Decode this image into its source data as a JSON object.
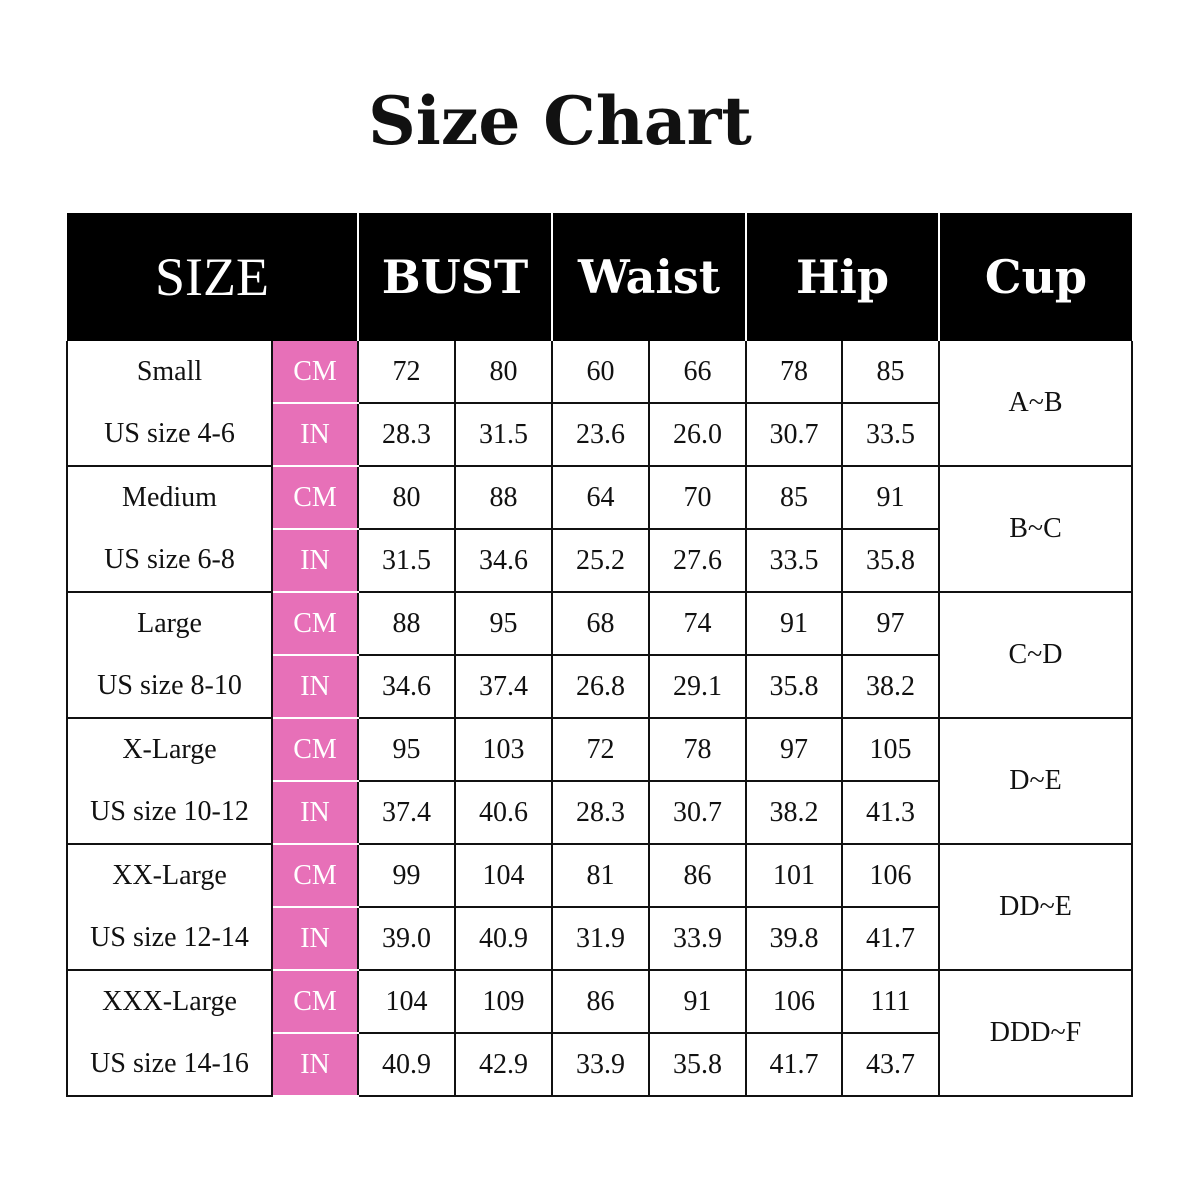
{
  "title": "Size Chart",
  "colors": {
    "header_bg": "#000000",
    "unit_bg": "#e770b8"
  },
  "headers": [
    "SIZE",
    "BUST",
    "Waist",
    "Hip",
    "Cup"
  ],
  "units": [
    "CM",
    "IN"
  ],
  "rows": [
    {
      "size": "Small",
      "us": "US size 4-6",
      "cm": [
        "72",
        "80",
        "60",
        "66",
        "78",
        "85"
      ],
      "in": [
        "28.3",
        "31.5",
        "23.6",
        "26.0",
        "30.7",
        "33.5"
      ],
      "cup": "A~B"
    },
    {
      "size": "Medium",
      "us": "US size 6-8",
      "cm": [
        "80",
        "88",
        "64",
        "70",
        "85",
        "91"
      ],
      "in": [
        "31.5",
        "34.6",
        "25.2",
        "27.6",
        "33.5",
        "35.8"
      ],
      "cup": "B~C"
    },
    {
      "size": "Large",
      "us": "US size 8-10",
      "cm": [
        "88",
        "95",
        "68",
        "74",
        "91",
        "97"
      ],
      "in": [
        "34.6",
        "37.4",
        "26.8",
        "29.1",
        "35.8",
        "38.2"
      ],
      "cup": "C~D"
    },
    {
      "size": "X-Large",
      "us": "US size 10-12",
      "cm": [
        "95",
        "103",
        "72",
        "78",
        "97",
        "105"
      ],
      "in": [
        "37.4",
        "40.6",
        "28.3",
        "30.7",
        "38.2",
        "41.3"
      ],
      "cup": "D~E"
    },
    {
      "size": "XX-Large",
      "us": "US size 12-14",
      "cm": [
        "99",
        "104",
        "81",
        "86",
        "101",
        "106"
      ],
      "in": [
        "39.0",
        "40.9",
        "31.9",
        "33.9",
        "39.8",
        "41.7"
      ],
      "cup": "DD~E"
    },
    {
      "size": "XXX-Large",
      "us": "US size 14-16",
      "cm": [
        "104",
        "109",
        "86",
        "91",
        "106",
        "111"
      ],
      "in": [
        "40.9",
        "42.9",
        "33.9",
        "35.8",
        "41.7",
        "43.7"
      ],
      "cup": "DDD~F"
    }
  ]
}
